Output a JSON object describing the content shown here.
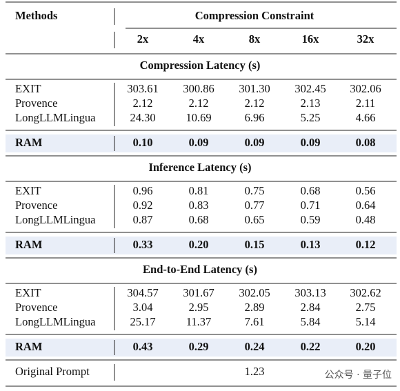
{
  "header": {
    "methods": "Methods",
    "group": "Compression Constraint",
    "columns": [
      "2x",
      "4x",
      "8x",
      "16x",
      "32x"
    ]
  },
  "sections": [
    {
      "title": "Compression Latency (s)",
      "rows": [
        {
          "method": "EXIT",
          "values": [
            "303.61",
            "300.86",
            "301.30",
            "302.45",
            "302.06"
          ]
        },
        {
          "method": "Provence",
          "values": [
            "2.12",
            "2.12",
            "2.12",
            "2.13",
            "2.11"
          ]
        },
        {
          "method": "LongLLMLingua",
          "values": [
            "24.30",
            "10.69",
            "6.96",
            "5.25",
            "4.66"
          ]
        }
      ],
      "ram": {
        "method": "RAM",
        "values": [
          "0.10",
          "0.09",
          "0.09",
          "0.09",
          "0.08"
        ]
      }
    },
    {
      "title": "Inference Latency (s)",
      "rows": [
        {
          "method": "EXIT",
          "values": [
            "0.96",
            "0.81",
            "0.75",
            "0.68",
            "0.56"
          ]
        },
        {
          "method": "Provence",
          "values": [
            "0.92",
            "0.83",
            "0.77",
            "0.71",
            "0.64"
          ]
        },
        {
          "method": "LongLLMLingua",
          "values": [
            "0.87",
            "0.68",
            "0.65",
            "0.59",
            "0.48"
          ]
        }
      ],
      "ram": {
        "method": "RAM",
        "values": [
          "0.33",
          "0.20",
          "0.15",
          "0.13",
          "0.12"
        ]
      }
    },
    {
      "title": "End-to-End Latency (s)",
      "rows": [
        {
          "method": "EXIT",
          "values": [
            "304.57",
            "301.67",
            "302.05",
            "303.13",
            "302.62"
          ]
        },
        {
          "method": "Provence",
          "values": [
            "3.04",
            "2.95",
            "2.89",
            "2.84",
            "2.75"
          ]
        },
        {
          "method": "LongLLMLingua",
          "values": [
            "25.17",
            "11.37",
            "7.61",
            "5.84",
            "5.14"
          ]
        }
      ],
      "ram": {
        "method": "RAM",
        "values": [
          "0.43",
          "0.29",
          "0.24",
          "0.22",
          "0.20"
        ]
      }
    }
  ],
  "footer": {
    "method": "Original Prompt",
    "value": "1.23"
  },
  "watermark": "公众号 · 量子位"
}
